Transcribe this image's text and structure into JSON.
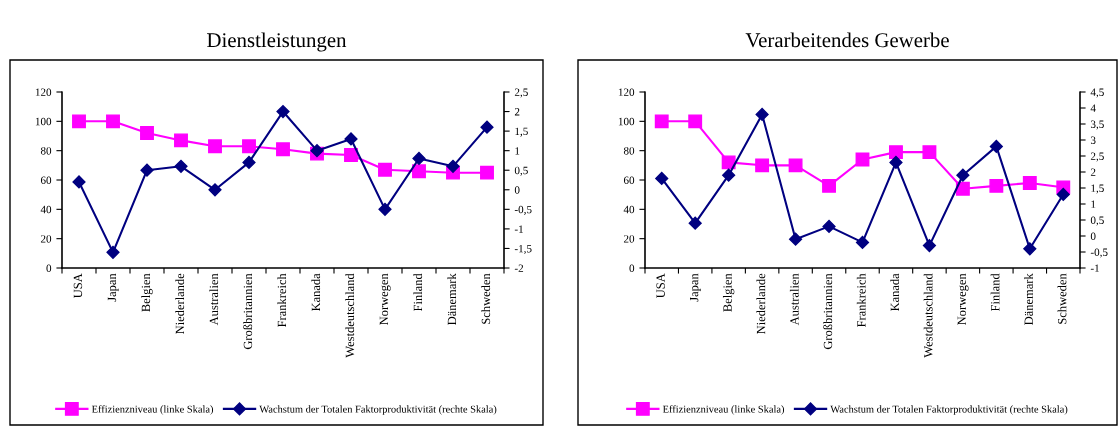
{
  "chart_data": [
    {
      "type": "line",
      "title": "Dienstleistungen",
      "categories": [
        "USA",
        "Japan",
        "Belgien",
        "Niederlande",
        "Australien",
        "Großbritannien",
        "Frankreich",
        "Kanada",
        "Westdeutschland",
        "Norwegen",
        "Finland",
        "Dänemark",
        "Schweden"
      ],
      "series": [
        {
          "name": "Effizienzniveau (linke Skala)",
          "color": "#ff00ff",
          "marker": "square",
          "values": [
            100,
            100,
            92,
            87,
            83,
            83,
            81,
            78,
            77,
            67,
            66,
            65,
            65
          ]
        },
        {
          "name": "Wachstum der Totalen Faktorproduktivität (rechte Skala)",
          "color": "#000080",
          "marker": "diamond",
          "axis": "y2",
          "values": [
            0.2,
            -1.6,
            0.5,
            0.6,
            0,
            0.7,
            2,
            1,
            1.3,
            -0.5,
            0.8,
            0.6,
            1.6
          ]
        }
      ],
      "ylim": [
        0,
        120
      ],
      "yticks": [
        0,
        20,
        40,
        60,
        80,
        100,
        120
      ],
      "y2lim": [
        -2,
        2.5
      ],
      "y2ticks": [
        {
          "value": -2,
          "label": "-2"
        },
        {
          "value": -1.5,
          "label": "-1,5"
        },
        {
          "value": -1,
          "label": "-1"
        },
        {
          "value": -0.5,
          "label": "-0,5"
        },
        {
          "value": 0,
          "label": "0"
        },
        {
          "value": 0.5,
          "label": "0,5"
        },
        {
          "value": 1,
          "label": "1"
        },
        {
          "value": 1.5,
          "label": "1,5"
        },
        {
          "value": 2,
          "label": "2"
        },
        {
          "value": 2.5,
          "label": "2,5"
        }
      ],
      "legend": "bottom",
      "grid": false
    },
    {
      "type": "line",
      "title": "Verarbeitendes Gewerbe",
      "categories": [
        "USA",
        "Japan",
        "Belgien",
        "Niederlande",
        "Australien",
        "Großbritannien",
        "Frankreich",
        "Kanada",
        "Westdeutschland",
        "Norwegen",
        "Finland",
        "Dänemark",
        "Schweden"
      ],
      "series": [
        {
          "name": "Effizienzniveau (linke Skala)",
          "color": "#ff00ff",
          "marker": "square",
          "values": [
            100,
            100,
            72,
            70,
            70,
            56,
            74,
            79,
            79,
            54,
            56,
            58,
            55
          ]
        },
        {
          "name": "Wachstum der Totalen Faktorproduktivität (rechte Skala)",
          "color": "#000080",
          "marker": "diamond",
          "axis": "y2",
          "values": [
            1.8,
            0.4,
            1.9,
            3.8,
            -0.1,
            0.3,
            -0.2,
            2.3,
            -0.3,
            1.9,
            2.8,
            -0.4,
            1.3
          ]
        }
      ],
      "ylim": [
        0,
        120
      ],
      "yticks": [
        0,
        20,
        40,
        60,
        80,
        100,
        120
      ],
      "y2lim": [
        -1,
        4.5
      ],
      "y2ticks": [
        {
          "value": -1,
          "label": "-1"
        },
        {
          "value": -0.5,
          "label": "-0,5"
        },
        {
          "value": 0,
          "label": "0"
        },
        {
          "value": 0.5,
          "label": "0,5"
        },
        {
          "value": 1,
          "label": "1"
        },
        {
          "value": 1.5,
          "label": "1,5"
        },
        {
          "value": 2,
          "label": "2"
        },
        {
          "value": 2.5,
          "label": "2,5"
        },
        {
          "value": 3,
          "label": "3"
        },
        {
          "value": 3.5,
          "label": "3,5"
        },
        {
          "value": 4,
          "label": "4"
        },
        {
          "value": 4.5,
          "label": "4,5"
        }
      ],
      "legend": "bottom",
      "grid": false
    }
  ]
}
